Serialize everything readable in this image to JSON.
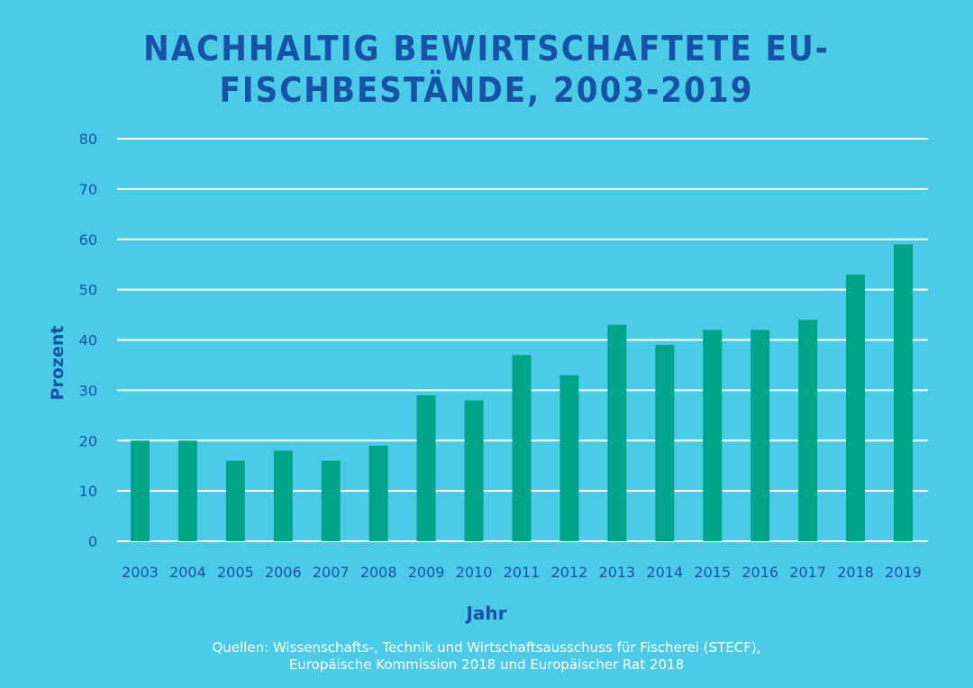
{
  "chart_data": {
    "type": "bar",
    "title": "NACHHALTIG BEWIRTSCHAFTETE EU-FISCHBESTÄNDE, 2003-2019",
    "xlabel": "Jahr",
    "ylabel": "Prozent",
    "ylim": [
      0,
      80
    ],
    "yticks": [
      0,
      10,
      20,
      30,
      40,
      50,
      60,
      70,
      80
    ],
    "grid": true,
    "categories": [
      "2003",
      "2004",
      "2005",
      "2006",
      "2007",
      "2008",
      "2009",
      "2010",
      "2011",
      "2012",
      "2013",
      "2014",
      "2015",
      "2016",
      "2017",
      "2018",
      "2019"
    ],
    "values": [
      20,
      20,
      16,
      18,
      16,
      19,
      29,
      28,
      37,
      33,
      43,
      39,
      42,
      42,
      44,
      53,
      59
    ],
    "colors": {
      "background": "#4ccbe9",
      "bar": "#00a489",
      "grid": "#ffffff",
      "text": "#1753a5"
    }
  },
  "source": {
    "line1": "Quellen: Wissenschafts-, Technik und Wirtschaftsausschuss für Fischerei (STECF),",
    "line2": "Europäische Kommission 2018 und Europäischer Rat 2018"
  }
}
